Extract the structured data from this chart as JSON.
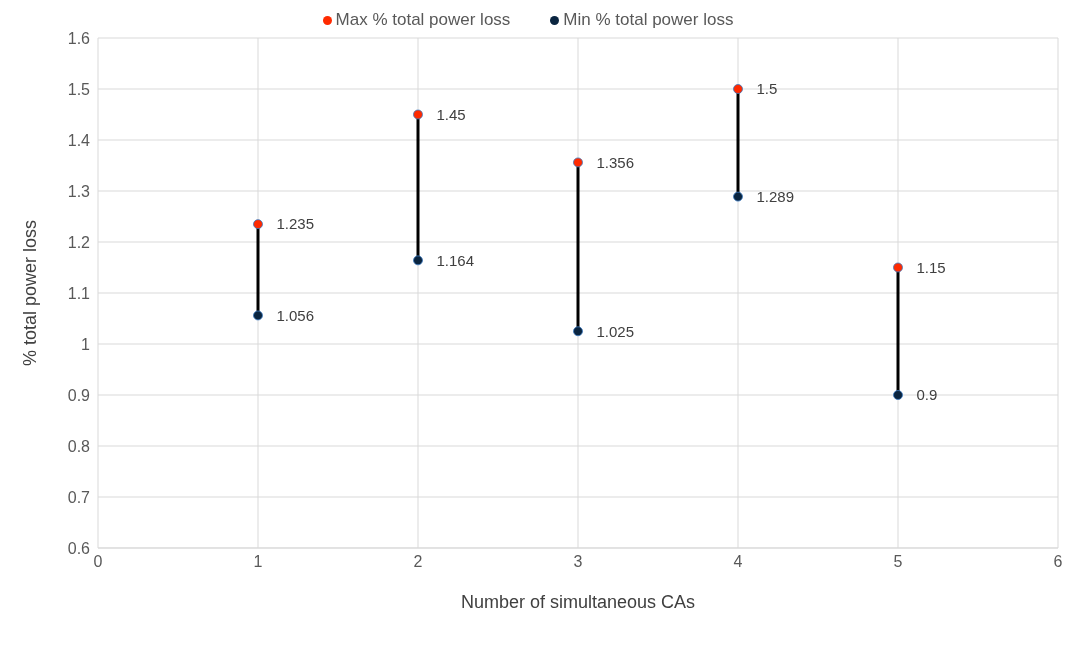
{
  "chart_data": {
    "type": "scatter",
    "xlabel": "Number of simultaneous CAs",
    "ylabel": "% total power loss",
    "x": [
      1,
      2,
      3,
      4,
      5
    ],
    "series": [
      {
        "name": "Min % total power loss",
        "color": "#0a2540",
        "values": [
          1.056,
          1.164,
          1.025,
          1.289,
          0.9
        ]
      },
      {
        "name": "Max % total power loss",
        "color": "#ff2a00",
        "values": [
          1.235,
          1.45,
          1.356,
          1.5,
          1.15
        ]
      }
    ],
    "xlim": [
      0,
      6
    ],
    "xticks": [
      0,
      1,
      2,
      3,
      4,
      5,
      6
    ],
    "ylim": [
      0.6,
      1.6
    ],
    "yticks": [
      0.6,
      0.7,
      0.8,
      0.9,
      1,
      1.1,
      1.2,
      1.3,
      1.4,
      1.5,
      1.6
    ],
    "grid": true,
    "legend": "top",
    "marker": "circle",
    "data_labels": true
  }
}
